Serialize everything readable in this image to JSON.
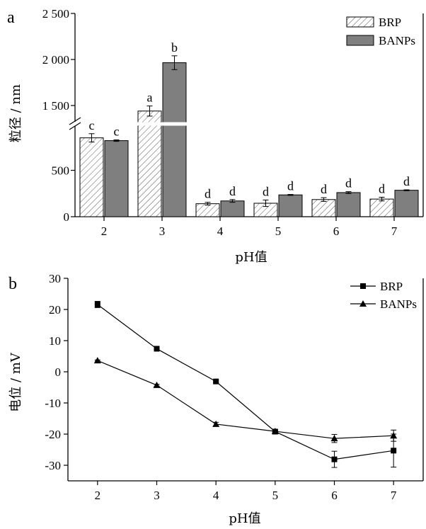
{
  "panel_a": {
    "letter": "a",
    "ylabel": "粒径 / nm",
    "xlabel": "pH值",
    "chart_data": {
      "type": "bar",
      "categories": [
        "2",
        "3",
        "4",
        "5",
        "6",
        "7"
      ],
      "series": [
        {
          "name": "BRP",
          "values": [
            850,
            1440,
            140,
            145,
            185,
            190
          ],
          "errors": [
            45,
            55,
            15,
            35,
            20,
            20
          ],
          "letters": [
            "c",
            "a",
            "d",
            "d",
            "d",
            "d"
          ],
          "fill": "hatched"
        },
        {
          "name": "BANPs",
          "values": [
            820,
            1965,
            170,
            235,
            260,
            285
          ],
          "errors": [
            8,
            75,
            15,
            5,
            10,
            5
          ],
          "letters": [
            "c",
            "b",
            "d",
            "d",
            "d",
            "d"
          ],
          "fill": "#7f7f7f"
        }
      ],
      "y_ticks": [
        "0",
        "500",
        "1 500",
        "2 000",
        "2 500"
      ],
      "ylim": [
        0,
        2500
      ],
      "axis_break": [
        1000,
        1300
      ],
      "legend": "top-right",
      "grid": false
    }
  },
  "panel_b": {
    "letter": "b",
    "ylabel": "电位 / mV",
    "xlabel": "pH值",
    "chart_data": {
      "type": "line",
      "x": [
        2,
        3,
        4,
        5,
        6,
        7
      ],
      "series": [
        {
          "name": "BRP",
          "marker": "square",
          "values": [
            21.6,
            7.4,
            -3.1,
            -19.2,
            -28.1,
            -25.3
          ],
          "errors": [
            1.0,
            0.3,
            0.3,
            0.3,
            2.6,
            5.3
          ]
        },
        {
          "name": "BANPs",
          "marker": "triangle",
          "values": [
            3.6,
            -4.3,
            -16.8,
            -19.1,
            -21.4,
            -20.5
          ],
          "errors": [
            0.2,
            0.3,
            0.6,
            0.3,
            1.3,
            1.8
          ]
        }
      ],
      "y_ticks": [
        "30",
        "20",
        "10",
        "0",
        "-10",
        "-20",
        "-30"
      ],
      "ylim": [
        -35,
        30
      ],
      "xlim": [
        1.5,
        7.5
      ],
      "legend": "top-right",
      "grid": false
    }
  }
}
